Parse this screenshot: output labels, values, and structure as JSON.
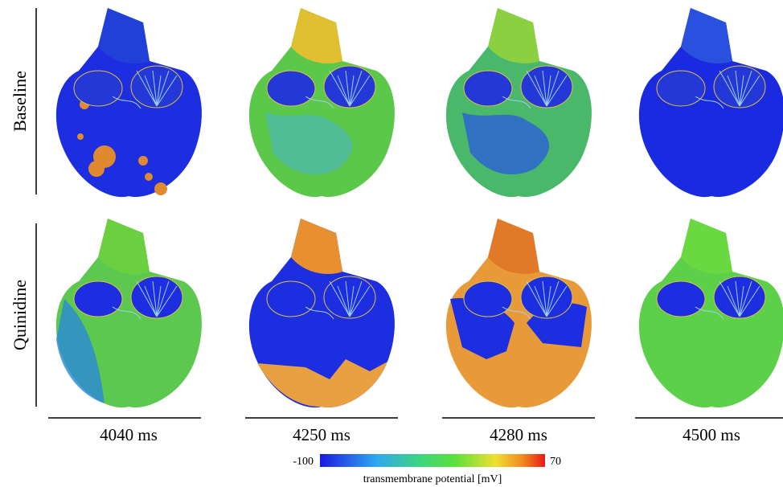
{
  "rows": [
    "Baseline",
    "Quinidine"
  ],
  "times": [
    "4040 ms",
    "4250 ms",
    "4280 ms",
    "4500 ms"
  ],
  "colorbar": {
    "min": -100,
    "max": 70,
    "label": "transmembrane potential [mV]"
  }
}
